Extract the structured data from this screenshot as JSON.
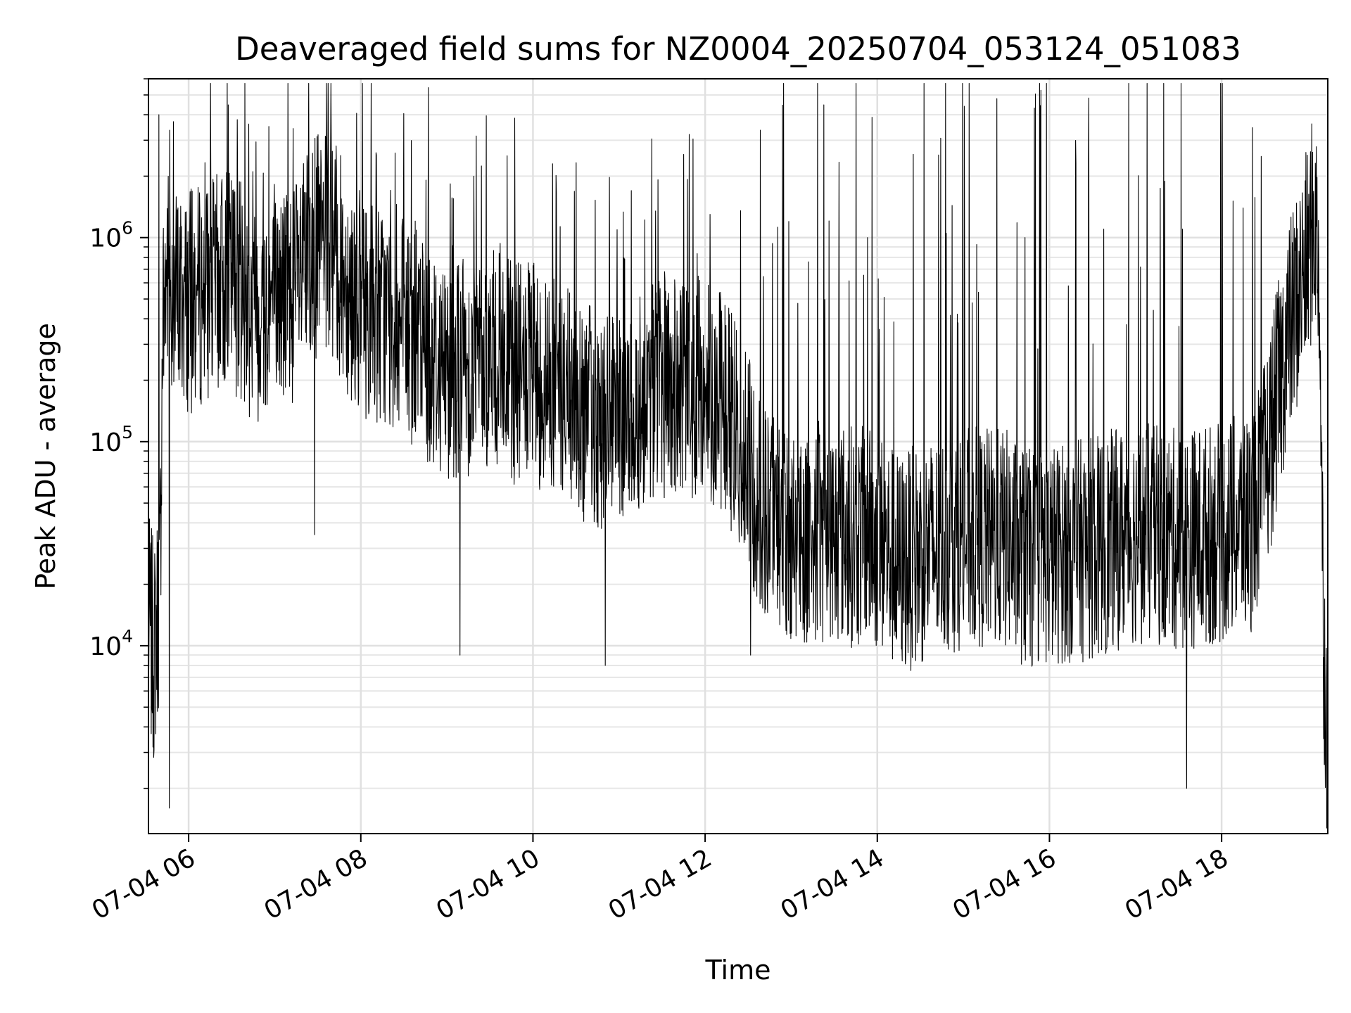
{
  "chart_data": {
    "type": "line",
    "title": "Deaveraged field sums for NZ0004_20250704_053124_051083",
    "xlabel": "Time",
    "ylabel": "Peak ADU - average",
    "yscale": "log",
    "xlim": [
      "07-04 05:32",
      "07-04 19:14"
    ],
    "ylim": [
      1200,
      6000000
    ],
    "grid": true,
    "line_color": "#000000",
    "x_ticks": [
      {
        "label": "07-04 06",
        "hour": 6
      },
      {
        "label": "07-04 08",
        "hour": 8
      },
      {
        "label": "07-04 10",
        "hour": 10
      },
      {
        "label": "07-04 12",
        "hour": 12
      },
      {
        "label": "07-04 14",
        "hour": 14
      },
      {
        "label": "07-04 16",
        "hour": 16
      },
      {
        "label": "07-04 18",
        "hour": 18
      }
    ],
    "y_ticks": [
      {
        "base": "10",
        "exp": "4",
        "value": 10000
      },
      {
        "base": "10",
        "exp": "5",
        "value": 100000
      },
      {
        "base": "10",
        "exp": "6",
        "value": 1000000
      }
    ],
    "series": [
      {
        "x": [
          "07-04 05:32",
          "07-04 05:36",
          "07-04 05:40",
          "07-04 05:42",
          "07-04 05:45",
          "07-04 05:50",
          "07-04 06:00",
          "07-04 06:15",
          "07-04 06:30",
          "07-04 06:45",
          "07-04 07:00",
          "07-04 07:15",
          "07-04 07:30",
          "07-04 07:40",
          "07-04 07:50",
          "07-04 08:00",
          "07-04 08:15",
          "07-04 08:30",
          "07-04 08:45",
          "07-04 09:00",
          "07-04 09:15",
          "07-04 09:30",
          "07-04 09:45",
          "07-04 10:00",
          "07-04 10:15",
          "07-04 10:30",
          "07-04 10:45",
          "07-04 11:00",
          "07-04 11:15",
          "07-04 11:30",
          "07-04 11:45",
          "07-04 12:00",
          "07-04 12:15",
          "07-04 12:30",
          "07-04 12:45",
          "07-04 13:00",
          "07-04 13:30",
          "07-04 14:00",
          "07-04 14:15",
          "07-04 14:30",
          "07-04 15:00",
          "07-04 15:30",
          "07-04 15:45",
          "07-04 16:00",
          "07-04 16:30",
          "07-04 17:00",
          "07-04 17:30",
          "07-04 18:00",
          "07-04 18:20",
          "07-04 18:30",
          "07-04 18:45",
          "07-04 19:00",
          "07-04 19:05",
          "07-04 19:08",
          "07-04 19:11",
          "07-04 19:14"
        ],
        "y": [
          13000,
          9000,
          20000,
          400000,
          700000,
          520000,
          480000,
          560000,
          640000,
          430000,
          500000,
          560000,
          920000,
          880000,
          620000,
          470000,
          420000,
          350000,
          280000,
          230000,
          240000,
          260000,
          220000,
          210000,
          180000,
          150000,
          130000,
          110000,
          160000,
          190000,
          170000,
          190000,
          150000,
          75000,
          40000,
          35000,
          36000,
          33000,
          25000,
          28000,
          34000,
          33000,
          26000,
          28000,
          30000,
          36000,
          33000,
          36000,
          40000,
          70000,
          300000,
          800000,
          1300000,
          700000,
          12000,
          3000
        ],
        "spike_up": [
          4000000,
          1800000,
          2200000,
          2600000,
          2000000,
          2300000,
          1700000,
          1300000,
          1200000,
          1000000,
          1050000,
          1000000,
          1100000,
          1100000,
          2500000
        ],
        "spike_down": [
          1600,
          35000,
          9000,
          8000,
          9000,
          11000,
          13000,
          2000
        ]
      }
    ]
  }
}
